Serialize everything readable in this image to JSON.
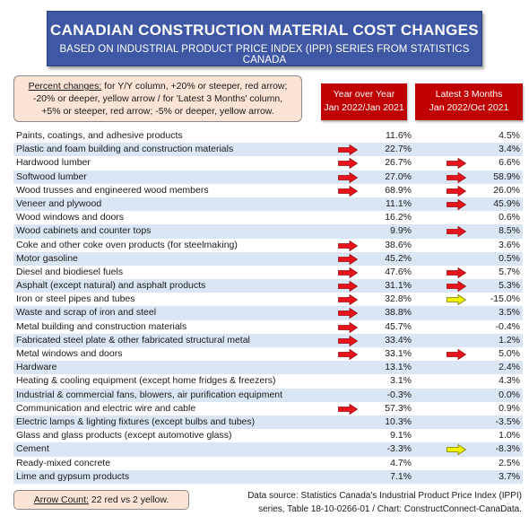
{
  "title": "CANADIAN CONSTRUCTION MATERIAL COST CHANGES",
  "subtitle": "BASED ON INDUSTRIAL PRODUCT PRICE INDEX (IPPI) SERIES FROM STATISTICS CANADA",
  "legend": {
    "label": "Percent changes:",
    "line1": " for Y/Y column, +20% or steeper, red arrow;",
    "line2": "-20% or deeper, yellow arrow / for 'Latest 3 Months' column,",
    "line3": "+5% or steeper, red arrow; -5% or deeper, yellow arrow."
  },
  "columns": {
    "yoy_line1": "Year over Year",
    "yoy_line2": "Jan 2022/Jan 2021",
    "m3_line1": "Latest 3 Months",
    "m3_line2": "Jan 2022/Oct 2021"
  },
  "colors": {
    "red_arrow": "#e8141b",
    "yellow_arrow": "#f2f200",
    "header_red": "#c00000",
    "banner_blue": "#3f58a5",
    "row_alt": "#dae6f3"
  },
  "rows": [
    {
      "name": "Paints, coatings, and adhesive products",
      "yoy": "11.6%",
      "yoy_arrow": "",
      "m3": "4.5%",
      "m3_arrow": ""
    },
    {
      "name": "Plastic and foam building and construction materials",
      "yoy": "22.7%",
      "yoy_arrow": "red",
      "m3": "3.4%",
      "m3_arrow": ""
    },
    {
      "name": "Hardwood lumber",
      "yoy": "26.7%",
      "yoy_arrow": "red",
      "m3": "6.6%",
      "m3_arrow": "red"
    },
    {
      "name": "Softwood lumber",
      "yoy": "27.0%",
      "yoy_arrow": "red",
      "m3": "58.9%",
      "m3_arrow": "red"
    },
    {
      "name": "Wood trusses and engineered wood members",
      "yoy": "68.9%",
      "yoy_arrow": "red",
      "m3": "26.0%",
      "m3_arrow": "red"
    },
    {
      "name": "Veneer and plywood",
      "yoy": "11.1%",
      "yoy_arrow": "",
      "m3": "45.9%",
      "m3_arrow": "red"
    },
    {
      "name": "Wood windows and doors",
      "yoy": "16.2%",
      "yoy_arrow": "",
      "m3": "0.6%",
      "m3_arrow": ""
    },
    {
      "name": "Wood cabinets and counter tops",
      "yoy": "9.9%",
      "yoy_arrow": "",
      "m3": "8.5%",
      "m3_arrow": "red"
    },
    {
      "name": "Coke and other coke oven products (for steelmaking)",
      "yoy": "38.6%",
      "yoy_arrow": "red",
      "m3": "3.6%",
      "m3_arrow": ""
    },
    {
      "name": "Motor gasoline",
      "yoy": "45.2%",
      "yoy_arrow": "red",
      "m3": "0.5%",
      "m3_arrow": ""
    },
    {
      "name": "Diesel and biodiesel fuels",
      "yoy": "47.6%",
      "yoy_arrow": "red",
      "m3": "5.7%",
      "m3_arrow": "red"
    },
    {
      "name": "Asphalt (except natural) and asphalt products",
      "yoy": "31.1%",
      "yoy_arrow": "red",
      "m3": "5.3%",
      "m3_arrow": "red"
    },
    {
      "name": "Iron or steel pipes and tubes",
      "yoy": "32.8%",
      "yoy_arrow": "red",
      "m3": "-15.0%",
      "m3_arrow": "yellow"
    },
    {
      "name": "Waste and scrap of iron and steel",
      "yoy": "38.8%",
      "yoy_arrow": "red",
      "m3": "3.5%",
      "m3_arrow": ""
    },
    {
      "name": "Metal building and construction materials",
      "yoy": "45.7%",
      "yoy_arrow": "red",
      "m3": "-0.4%",
      "m3_arrow": ""
    },
    {
      "name": "Fabricated steel plate & other fabricated structural metal",
      "yoy": "33.4%",
      "yoy_arrow": "red",
      "m3": "1.2%",
      "m3_arrow": ""
    },
    {
      "name": "Metal windows and doors",
      "yoy": "33.1%",
      "yoy_arrow": "red",
      "m3": "5.0%",
      "m3_arrow": "red"
    },
    {
      "name": "Hardware",
      "yoy": "13.1%",
      "yoy_arrow": "",
      "m3": "2.4%",
      "m3_arrow": ""
    },
    {
      "name": "Heating & cooling equipment (except home fridges & freezers)",
      "yoy": "3.1%",
      "yoy_arrow": "",
      "m3": "4.3%",
      "m3_arrow": ""
    },
    {
      "name": "Industrial & commercial fans, blowers, air purification equipment",
      "yoy": "-0.3%",
      "yoy_arrow": "",
      "m3": "0.0%",
      "m3_arrow": ""
    },
    {
      "name": "Communication and electric wire and cable",
      "yoy": "57.3%",
      "yoy_arrow": "red",
      "m3": "0.9%",
      "m3_arrow": ""
    },
    {
      "name": "Electric lamps & lighting fixtures (except bulbs and tubes)",
      "yoy": "10.3%",
      "yoy_arrow": "",
      "m3": "-3.5%",
      "m3_arrow": ""
    },
    {
      "name": "Glass and glass products (except automotive glass)",
      "yoy": "9.1%",
      "yoy_arrow": "",
      "m3": "1.0%",
      "m3_arrow": ""
    },
    {
      "name": "Cement",
      "yoy": "-3.3%",
      "yoy_arrow": "",
      "m3": "-8.3%",
      "m3_arrow": "yellow"
    },
    {
      "name": "Ready-mixed concrete",
      "yoy": "4.7%",
      "yoy_arrow": "",
      "m3": "2.5%",
      "m3_arrow": ""
    },
    {
      "name": "Lime and gypsum products",
      "yoy": "7.1%",
      "yoy_arrow": "",
      "m3": "3.7%",
      "m3_arrow": ""
    }
  ],
  "arrow_count": {
    "label": "Arrow Count:",
    "value": " 22 red vs 2 yellow."
  },
  "source": {
    "line1": "Data source: Statistics Canada's Industrial Product Price Index (IPPI)",
    "line2": "series, Table 18-10-0266-01 / Chart: ConstructConnect-CanaData."
  }
}
